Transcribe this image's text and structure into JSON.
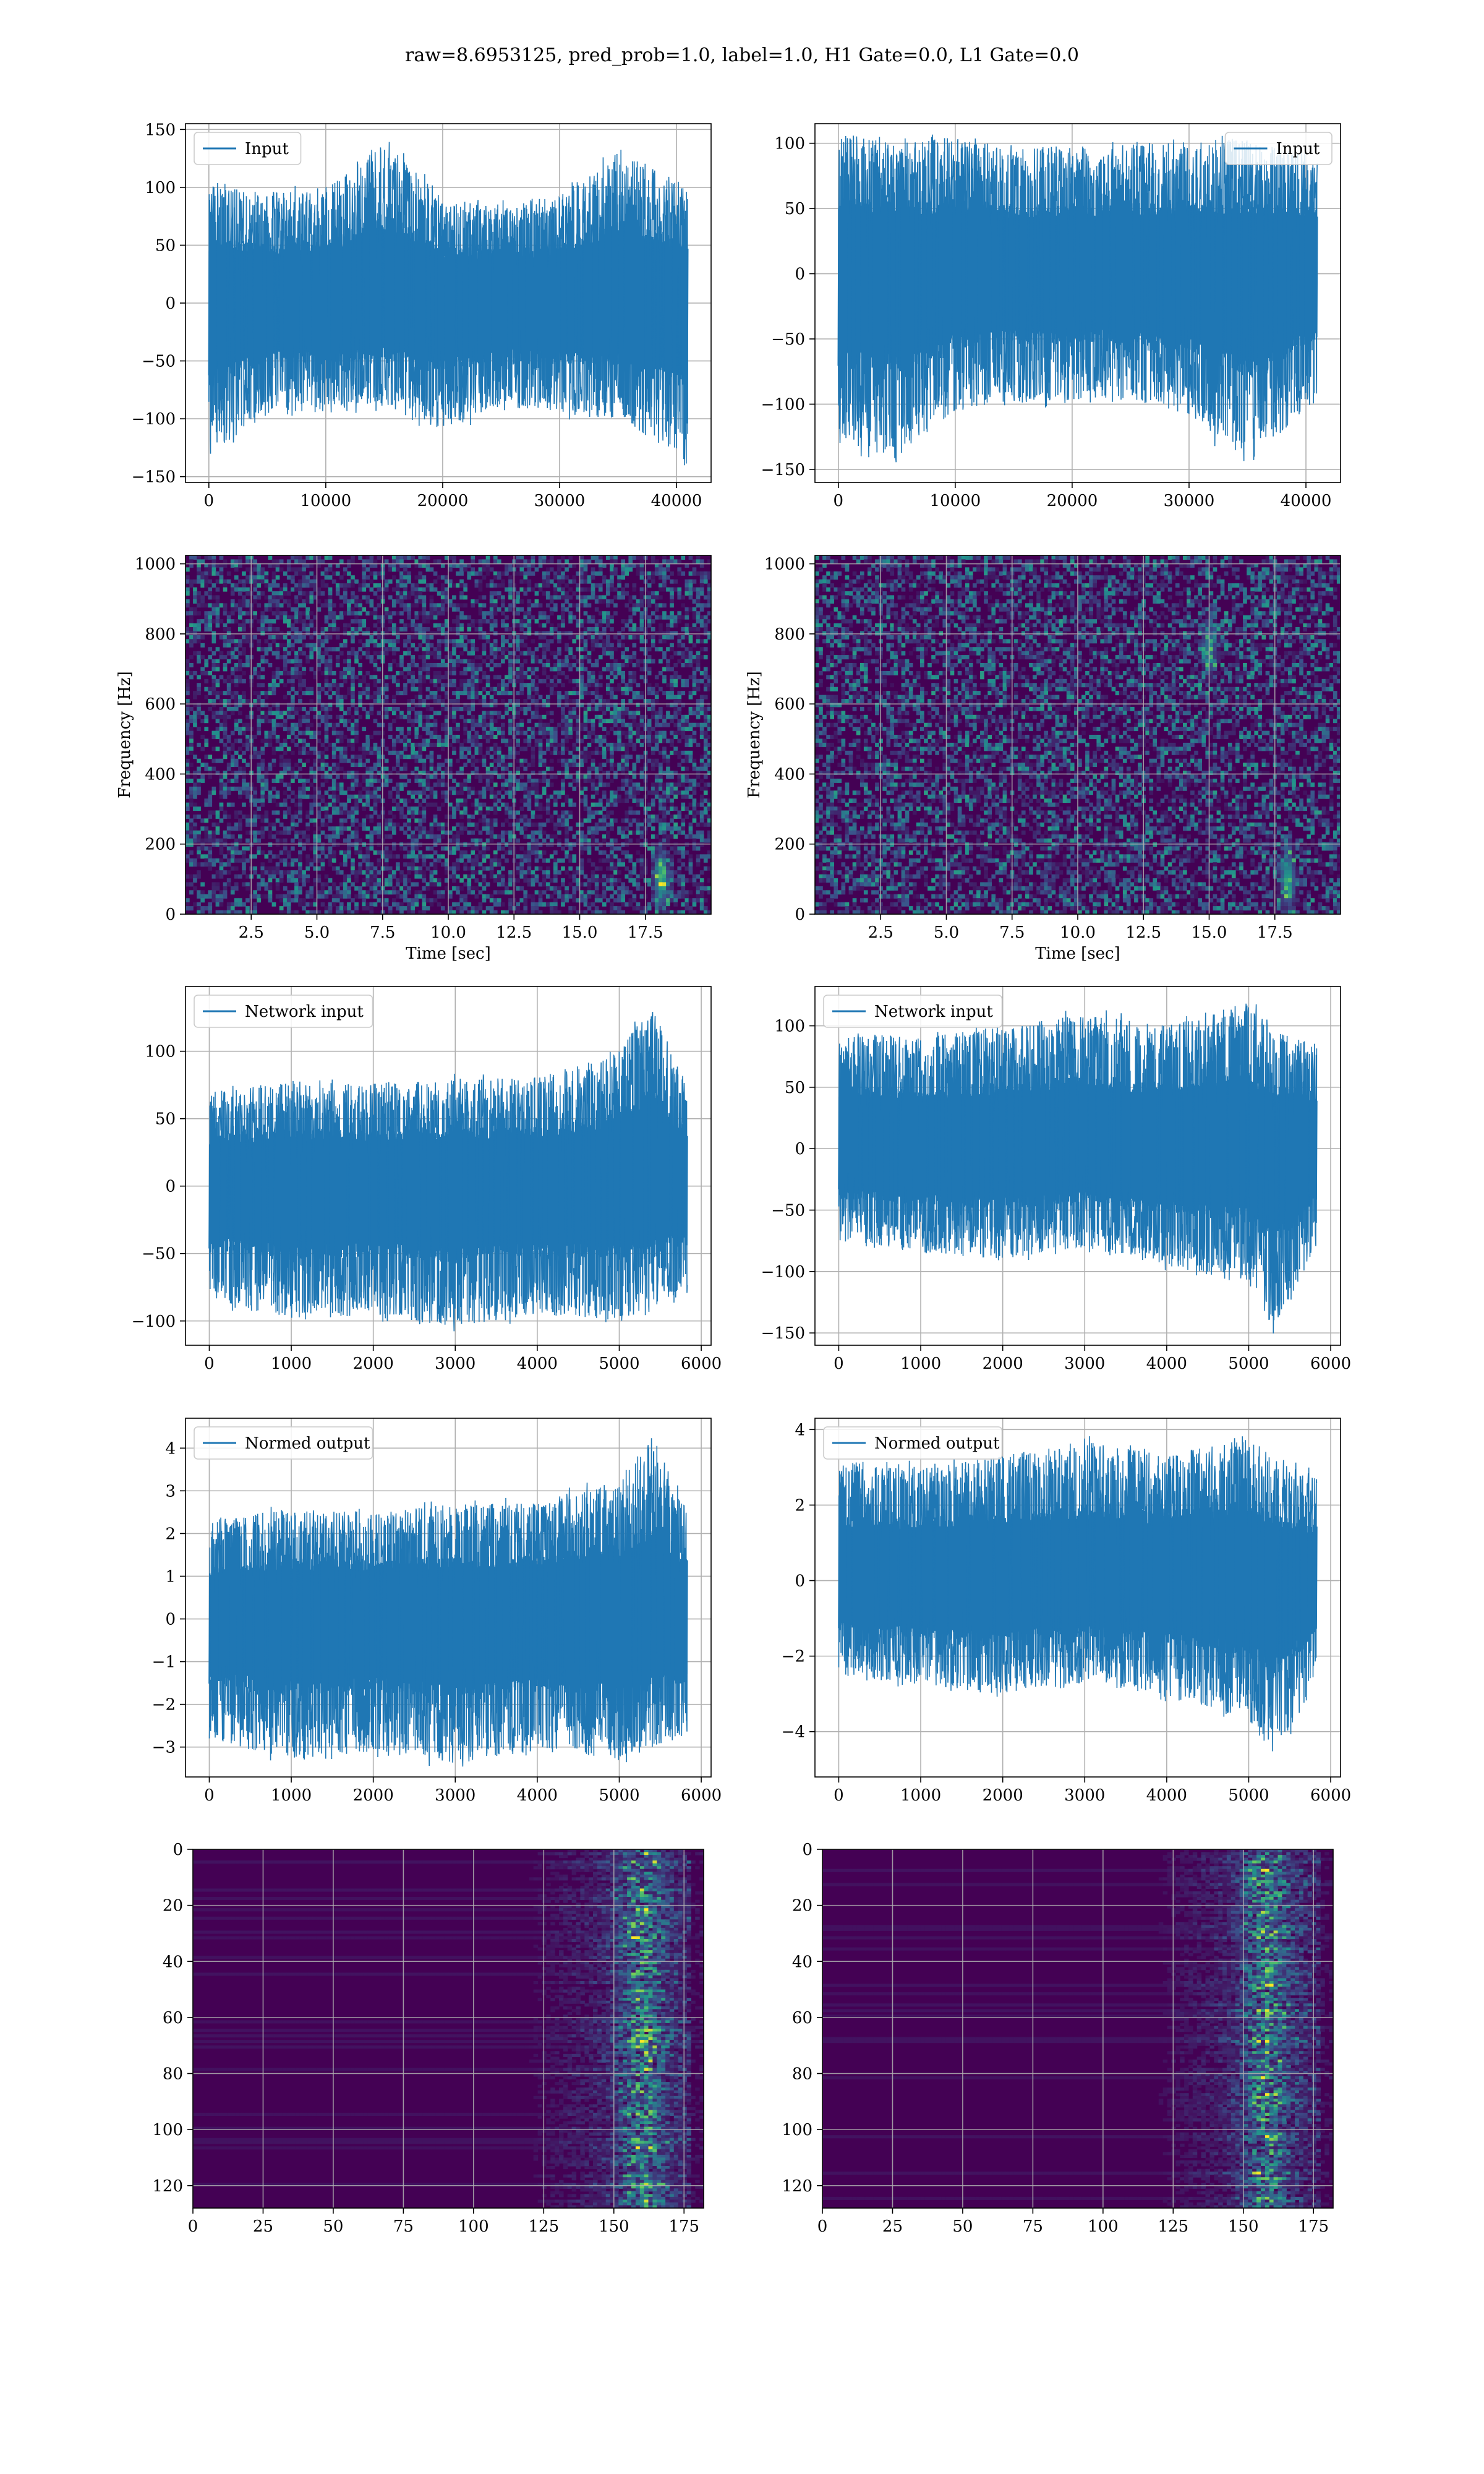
{
  "title": "raw=8.6953125, pred_prob=1.0, label=1.0, H1 Gate=0.0, L1 Gate=0.0",
  "colors": {
    "line": "#1f77b4",
    "grid": "#b0b0b0",
    "viridis_low": "#440154",
    "viridis_high": "#fde725"
  },
  "chart_data": [
    {
      "id": "h1-input",
      "type": "line",
      "legend": "Input",
      "legend_loc": "upper left",
      "xlim": [
        -2000,
        42960
      ],
      "ylim": [
        -155,
        155
      ],
      "xticks": [
        0,
        10000,
        20000,
        30000,
        40000
      ],
      "yticks": [
        -150,
        -100,
        -50,
        0,
        50,
        100,
        150
      ],
      "n_samples": 40960,
      "series": [
        {
          "envelope_x": [
            0,
            5000,
            10000,
            15000,
            20000,
            25000,
            30000,
            35000,
            40960
          ],
          "envelope_high": [
            102,
            95,
            98,
            145,
            90,
            85,
            92,
            135,
            100
          ],
          "envelope_low": [
            -135,
            -92,
            -95,
            -88,
            -110,
            -90,
            -95,
            -100,
            -140
          ]
        }
      ]
    },
    {
      "id": "l1-input",
      "type": "line",
      "legend": "Input",
      "legend_loc": "upper right",
      "xlim": [
        -2000,
        42960
      ],
      "ylim": [
        -160,
        115
      ],
      "xticks": [
        0,
        10000,
        20000,
        30000,
        40000
      ],
      "yticks": [
        -150,
        -100,
        -50,
        0,
        50,
        100
      ],
      "n_samples": 40960,
      "series": [
        {
          "envelope_x": [
            0,
            5000,
            10000,
            15000,
            20000,
            25000,
            30000,
            35000,
            40960
          ],
          "envelope_high": [
            108,
            100,
            105,
            95,
            98,
            100,
            102,
            104,
            90
          ],
          "envelope_low": [
            -132,
            -140,
            -105,
            -98,
            -100,
            -96,
            -110,
            -148,
            -95
          ]
        }
      ]
    },
    {
      "id": "h1-spectrogram",
      "type": "heatmap",
      "xlim": [
        0,
        20
      ],
      "ylim": [
        0,
        1024
      ],
      "xticks": [
        2.5,
        5.0,
        7.5,
        10.0,
        12.5,
        15.0,
        17.5
      ],
      "yticks": [
        0,
        200,
        400,
        600,
        800,
        1000
      ],
      "xlabel": "Time [sec]",
      "ylabel": "Frequency [Hz]",
      "colormap": "viridis",
      "hotspots": [
        {
          "x": 18.1,
          "y": 100,
          "intensity": 0.6
        }
      ]
    },
    {
      "id": "l1-spectrogram",
      "type": "heatmap",
      "xlim": [
        0,
        20
      ],
      "ylim": [
        0,
        1024
      ],
      "xticks": [
        2.5,
        5.0,
        7.5,
        10.0,
        12.5,
        15.0,
        17.5
      ],
      "yticks": [
        0,
        200,
        400,
        600,
        800,
        1000
      ],
      "xlabel": "Time [sec]",
      "ylabel": "Frequency [Hz]",
      "colormap": "viridis",
      "hotspots": [
        {
          "x": 18.0,
          "y": 100,
          "intensity": 0.55
        },
        {
          "x": 15.0,
          "y": 760,
          "intensity": 0.4
        }
      ]
    },
    {
      "id": "h1-network-input",
      "type": "line",
      "legend": "Network input",
      "legend_loc": "upper left",
      "xlim": [
        -290,
        6120
      ],
      "ylim": [
        -118,
        148
      ],
      "xticks": [
        0,
        1000,
        2000,
        3000,
        4000,
        5000,
        6000
      ],
      "yticks": [
        -100,
        -50,
        0,
        50,
        100
      ],
      "n_samples": 5830,
      "series": [
        {
          "envelope_x": [
            0,
            1000,
            2000,
            3000,
            4000,
            5000,
            5400,
            5830
          ],
          "envelope_high": [
            70,
            78,
            75,
            80,
            80,
            100,
            135,
            75
          ],
          "envelope_low": [
            -85,
            -100,
            -95,
            -105,
            -95,
            -100,
            -90,
            -80
          ]
        }
      ]
    },
    {
      "id": "l1-network-input",
      "type": "line",
      "legend": "Network input",
      "legend_loc": "upper left",
      "xlim": [
        -290,
        6120
      ],
      "ylim": [
        -160,
        132
      ],
      "xticks": [
        0,
        1000,
        2000,
        3000,
        4000,
        5000,
        6000
      ],
      "yticks": [
        -150,
        -100,
        -50,
        0,
        50,
        100
      ],
      "n_samples": 5830,
      "series": [
        {
          "envelope_x": [
            0,
            1000,
            2000,
            3000,
            4000,
            5000,
            5300,
            5830
          ],
          "envelope_high": [
            95,
            90,
            100,
            110,
            100,
            120,
            95,
            85
          ],
          "envelope_low": [
            -75,
            -85,
            -90,
            -80,
            -95,
            -110,
            -148,
            -80
          ]
        }
      ]
    },
    {
      "id": "h1-normed-output",
      "type": "line",
      "legend": "Normed output",
      "legend_loc": "upper left",
      "xlim": [
        -290,
        6120
      ],
      "ylim": [
        -3.7,
        4.7
      ],
      "xticks": [
        0,
        1000,
        2000,
        3000,
        4000,
        5000,
        6000
      ],
      "yticks": [
        -3,
        -2,
        -1,
        0,
        1,
        2,
        3,
        4
      ],
      "n_samples": 5830,
      "series": [
        {
          "envelope_x": [
            0,
            1000,
            2000,
            3000,
            4000,
            5000,
            5400,
            5830
          ],
          "envelope_high": [
            2.3,
            2.6,
            2.5,
            2.7,
            2.7,
            3.3,
            4.3,
            2.6
          ],
          "envelope_low": [
            -2.8,
            -3.3,
            -3.1,
            -3.4,
            -3.1,
            -3.3,
            -3.0,
            -2.7
          ]
        }
      ]
    },
    {
      "id": "l1-normed-output",
      "type": "line",
      "legend": "Normed output",
      "legend_loc": "upper left",
      "xlim": [
        -290,
        6120
      ],
      "ylim": [
        -5.2,
        4.3
      ],
      "xticks": [
        0,
        1000,
        2000,
        3000,
        4000,
        5000,
        6000
      ],
      "yticks": [
        -4,
        -2,
        0,
        2,
        4
      ],
      "n_samples": 5830,
      "series": [
        {
          "envelope_x": [
            0,
            1000,
            2000,
            3000,
            4000,
            5000,
            5300,
            5830
          ],
          "envelope_high": [
            3.2,
            3.0,
            3.3,
            3.7,
            3.3,
            3.9,
            3.2,
            2.8
          ],
          "envelope_low": [
            -2.5,
            -2.8,
            -3.0,
            -2.7,
            -3.1,
            -3.7,
            -4.7,
            -2.7
          ]
        }
      ]
    },
    {
      "id": "h1-feature-map",
      "type": "heatmap",
      "xlim": [
        0,
        182
      ],
      "ylim": [
        128,
        0
      ],
      "xticks": [
        0,
        25,
        50,
        75,
        100,
        125,
        150,
        175
      ],
      "yticks": [
        0,
        20,
        40,
        60,
        80,
        100,
        120
      ],
      "colormap": "viridis",
      "active_from_x": 120,
      "peak_x": 160
    },
    {
      "id": "l1-feature-map",
      "type": "heatmap",
      "xlim": [
        0,
        182
      ],
      "ylim": [
        128,
        0
      ],
      "xticks": [
        0,
        25,
        50,
        75,
        100,
        125,
        150,
        175
      ],
      "yticks": [
        0,
        20,
        40,
        60,
        80,
        100,
        120
      ],
      "colormap": "viridis",
      "active_from_x": 120,
      "peak_x": 158
    }
  ]
}
